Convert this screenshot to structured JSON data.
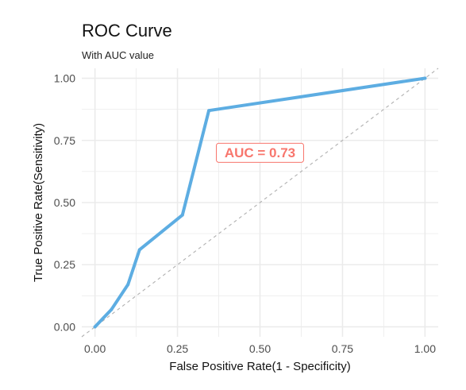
{
  "chart_data": {
    "type": "line",
    "title": "ROC Curve",
    "subtitle": "With AUC value",
    "xlabel": "False Positive Rate(1 - Specificity)",
    "ylabel": "True Positive Rate(Sensitivity)",
    "xlim": [
      -0.04,
      1.04
    ],
    "ylim": [
      -0.04,
      1.04
    ],
    "x_ticks": [
      "0.00",
      "0.25",
      "0.50",
      "0.75",
      "1.00"
    ],
    "y_ticks": [
      "0.00",
      "0.25",
      "0.50",
      "0.75",
      "1.00"
    ],
    "grid": true,
    "legend": "none",
    "series": [
      {
        "color": "#5DADE2",
        "points": [
          {
            "x": 0.0,
            "y": 0.0
          },
          {
            "x": 0.05,
            "y": 0.07
          },
          {
            "x": 0.1,
            "y": 0.17
          },
          {
            "x": 0.135,
            "y": 0.31
          },
          {
            "x": 0.265,
            "y": 0.45
          },
          {
            "x": 0.345,
            "y": 0.87
          },
          {
            "x": 1.0,
            "y": 1.0
          }
        ]
      }
    ],
    "reference_line": {
      "from": [
        -0.04,
        -0.04
      ],
      "to": [
        1.04,
        1.04
      ],
      "style": "dashed",
      "color": "#b0b0b0"
    },
    "annotation": {
      "text": "AUC = 0.73",
      "x": 0.5,
      "y": 0.7,
      "color": "#F8766D"
    }
  }
}
